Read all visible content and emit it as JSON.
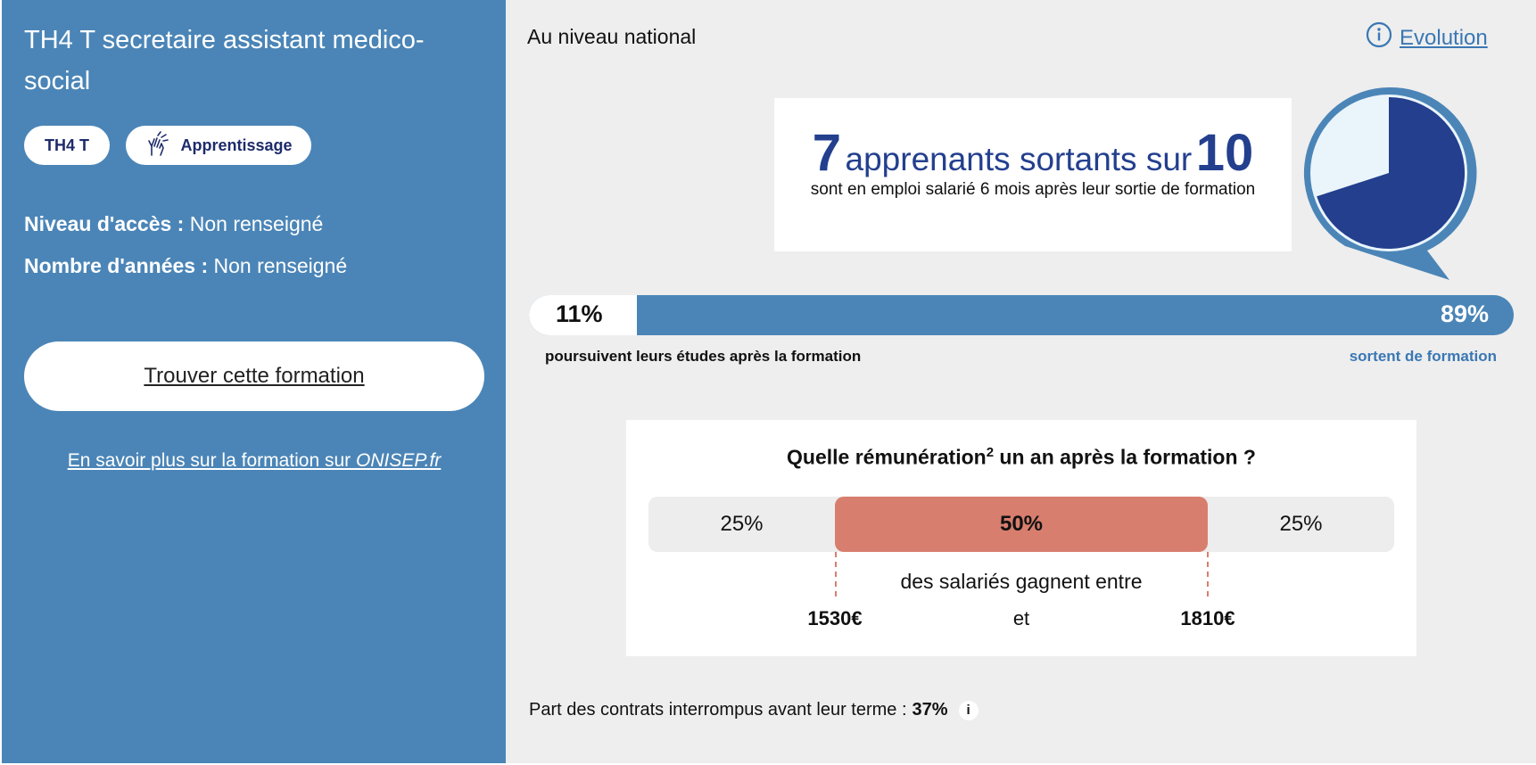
{
  "formation": {
    "title": "TH4 T secretaire assistant medico-social",
    "tags": [
      {
        "label": "TH4 T"
      },
      {
        "label": "Apprentissage",
        "icon": "sign-language-icon"
      }
    ],
    "access_label": "Niveau d'accès :",
    "access_value": "Non renseigné",
    "years_label": "Nombre d'années :",
    "years_value": "Non renseigné",
    "find_button": "Trouver cette formation",
    "onisep_text": "En savoir plus sur la formation sur ",
    "onisep_site": "ONISEP.fr"
  },
  "stats": {
    "scope": "Au niveau national",
    "evolution_link": "Evolution",
    "employment": {
      "count": "7",
      "words_mid": "apprenants sortants sur",
      "total": "10",
      "subtitle": "sont en emploi salarié 6 mois après leur sortie de formation",
      "fraction": 0.7
    },
    "continuation": {
      "left_pct": "11%",
      "right_pct": "89%",
      "left_fraction": 0.11,
      "left_caption": "poursuivent leurs études après la formation",
      "right_caption": "sortent de formation"
    },
    "salary": {
      "title": "Quelle rémunération",
      "title_sup": "2",
      "title_end": " un an après la formation ?",
      "segments": [
        "25%",
        "50%",
        "25%"
      ],
      "between_text": "des salariés gagnent entre",
      "min": "1530€",
      "and": "et",
      "max": "1810€"
    },
    "contracts_text": "Part des contrats interrompus avant leur terme :",
    "contracts_value": "37%",
    "info_glyph": "i"
  },
  "colors": {
    "sidebar": "#4b85b7",
    "navy": "#233f8e",
    "salary_mid": "#d87e6e",
    "link": "#3a77b4"
  }
}
